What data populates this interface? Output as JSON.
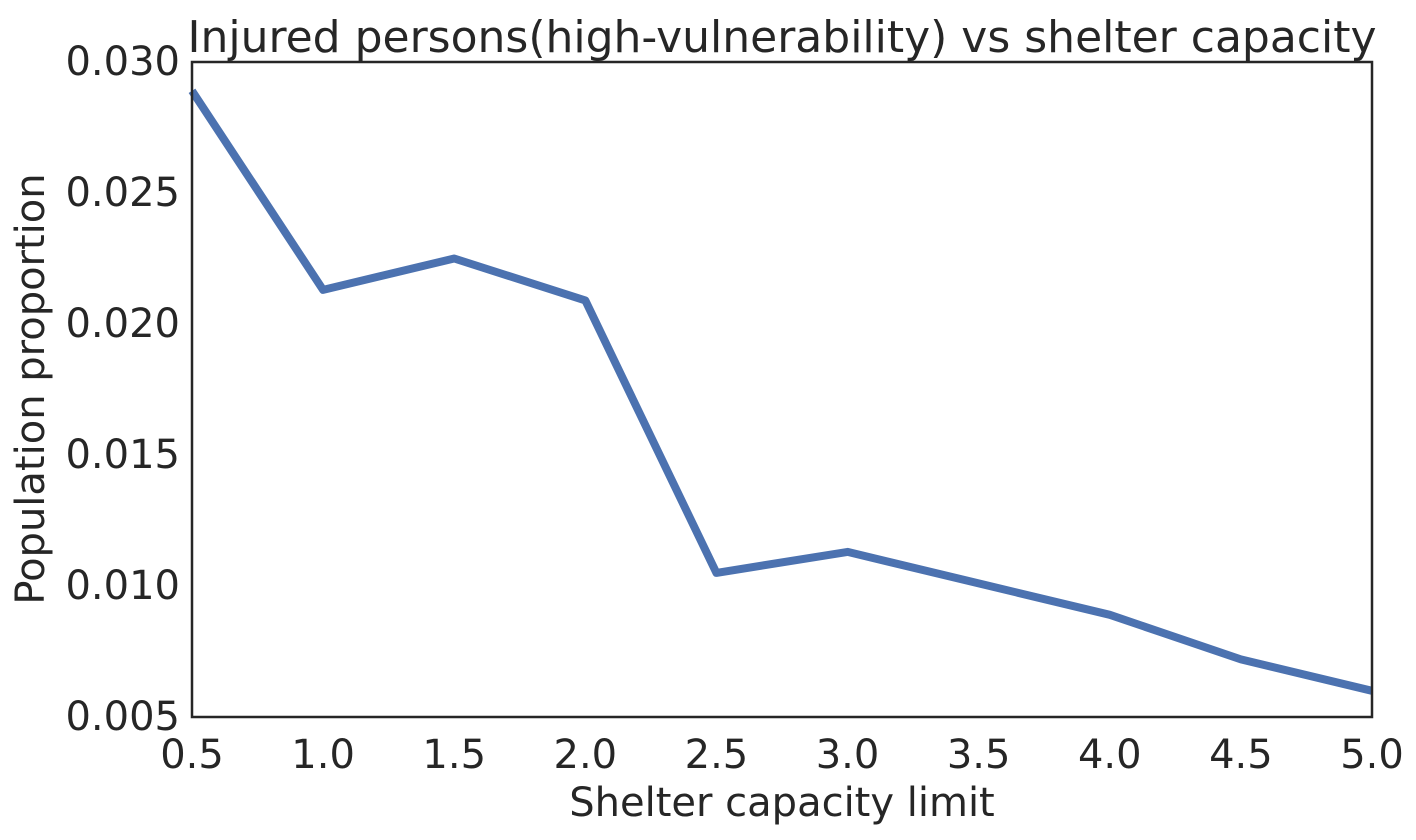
{
  "chart_data": {
    "type": "line",
    "title": "Injured persons(high-vulnerability) vs shelter capacity",
    "xlabel": "Shelter capacity limit",
    "ylabel": "Population proportion",
    "xlim": [
      0.5,
      5.0
    ],
    "ylim": [
      0.005,
      0.03
    ],
    "x_ticks": [
      "0.5",
      "1.0",
      "1.5",
      "2.0",
      "2.5",
      "3.0",
      "3.5",
      "4.0",
      "4.5",
      "5.0"
    ],
    "y_ticks": [
      "0.005",
      "0.010",
      "0.015",
      "0.020",
      "0.025",
      "0.030"
    ],
    "grid": false,
    "legend": "none",
    "series": [
      {
        "color": "#4c72b0",
        "x": [
          0.5,
          1.0,
          1.5,
          2.0,
          2.5,
          3.0,
          3.5,
          4.0,
          4.5,
          5.0
        ],
        "y": [
          0.0289,
          0.0213,
          0.0225,
          0.0209,
          0.0105,
          0.0113,
          0.0101,
          0.0089,
          0.0072,
          0.006
        ]
      }
    ]
  }
}
